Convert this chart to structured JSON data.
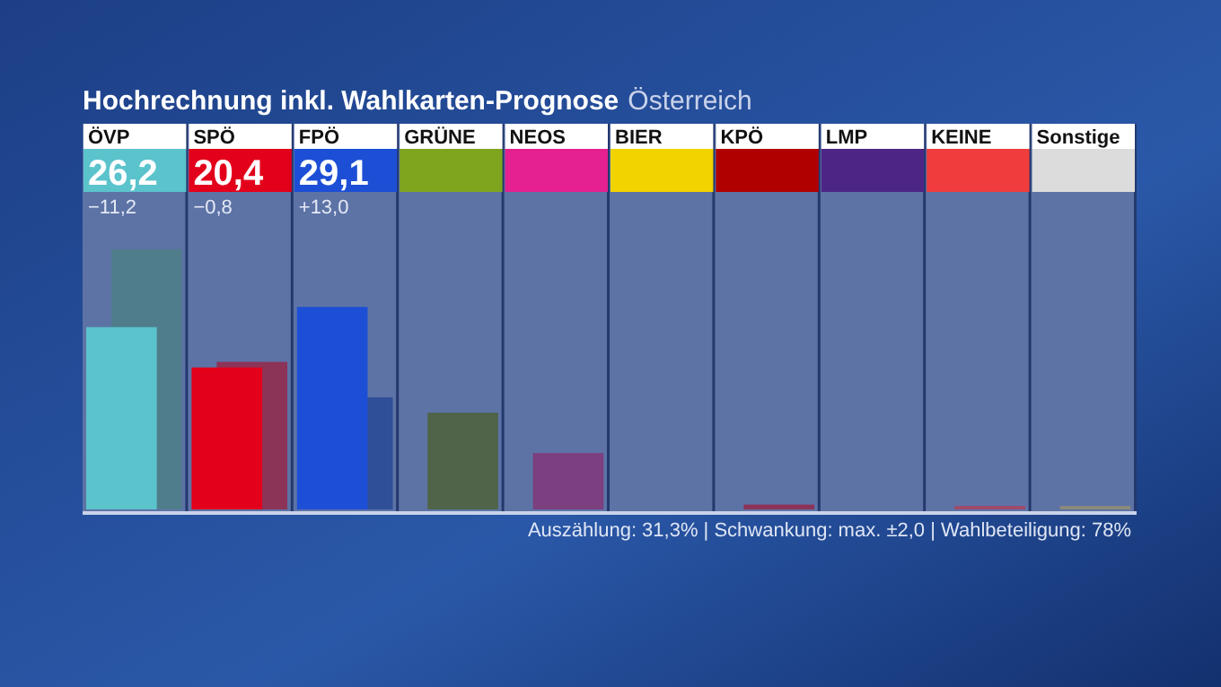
{
  "chart_data": {
    "type": "bar",
    "title": "Hochrechnung inkl. Wahlkarten-Prognose",
    "subtitle": "Österreich",
    "categories": [
      "ÖVP",
      "SPÖ",
      "FPÖ",
      "GRÜNE",
      "NEOS",
      "BIER",
      "KPÖ",
      "LMP",
      "KEINE",
      "Sonstige"
    ],
    "series": [
      {
        "values": [
          26.2,
          20.4,
          29.1,
          null,
          null,
          null,
          null,
          null,
          null,
          null
        ],
        "colors": [
          "#5bc3cc",
          "#e3001b",
          "#1d4fd6",
          "#7fa51f",
          "#e5208f",
          "#f2d300",
          "#b00000",
          "#4d2585",
          "#f03c3c",
          "#dcdcdc"
        ],
        "value_labels": [
          "26,2",
          "20,4",
          "29,1",
          null,
          null,
          null,
          null,
          null,
          null,
          null
        ]
      },
      {
        "values": [
          37.4,
          21.2,
          16.1,
          13.9,
          8.1,
          null,
          0.7,
          null,
          0.5,
          0.5
        ],
        "colors": [
          "#4f7d8c",
          "#8c3358",
          "#2f4f98",
          "#4f6448",
          "#7c3f80",
          null,
          "#8c3358",
          null,
          "#a04a68",
          "#8c8a7a"
        ]
      }
    ],
    "annotations": [
      "−11,2",
      "−0,8",
      "+13,0",
      "Auszählung: 31,3% | Schwankung: max. ±2,0 | Wahlbeteiligung: 78%"
    ]
  }
}
